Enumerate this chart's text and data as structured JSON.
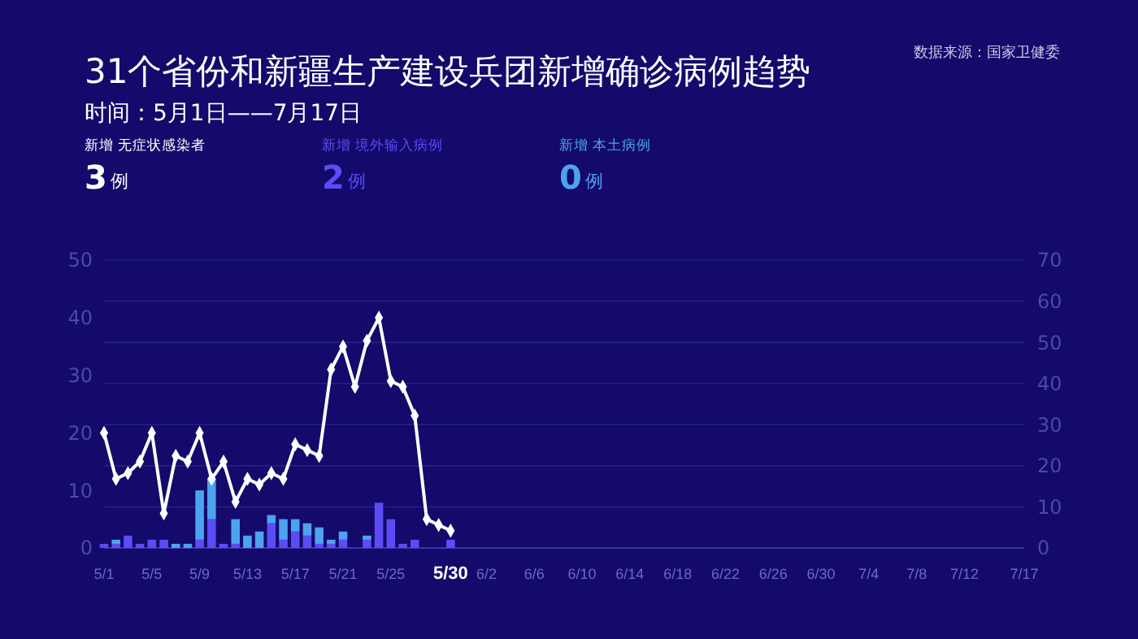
{
  "chart_data": {
    "type": "bar",
    "title": "31个省份和新疆生产建设兵团新增确诊病例趋势",
    "subtitle": "时间：5月1日——7月17日",
    "annotations": [
      "数据来源：国家卫健委",
      "例",
      "3",
      "2",
      "0"
    ],
    "x": [
      "--05-01",
      "--05-02",
      "--05-03",
      "--05-04",
      "--05-05",
      "--05-06",
      "--05-07",
      "--05-08",
      "--05-09",
      "--05-10",
      "--05-11",
      "--05-12",
      "--05-13",
      "--05-14",
      "--05-15",
      "--05-16",
      "--05-17",
      "--05-18",
      "--05-19",
      "--05-20",
      "--05-21",
      "--05-22",
      "--05-23",
      "--05-24",
      "--05-25",
      "--05-26",
      "--05-27",
      "--05-28",
      "--05-29",
      "--05-30"
    ],
    "series": [
      {
        "name": "新增 无症状感染者",
        "type": "line",
        "axis": "y",
        "color": "#ffffff",
        "values": [
          20,
          12,
          13,
          15,
          20,
          6,
          16,
          15,
          20,
          12,
          15,
          8,
          12,
          11,
          13,
          12,
          18,
          17,
          16,
          31,
          35,
          28,
          36,
          40,
          29,
          28,
          23,
          5,
          4,
          3
        ]
      },
      {
        "name": "新增 境外输入病例",
        "axis": "y2",
        "color": "#5b4cf5",
        "values": [
          1,
          1,
          3,
          1,
          2,
          2,
          0,
          0,
          2,
          7,
          1,
          1,
          0,
          0,
          6,
          2,
          4,
          3,
          1,
          1,
          2,
          0,
          2,
          11,
          7,
          1,
          2,
          0,
          0,
          2
        ]
      },
      {
        "name": "新增 本土病例",
        "axis": "y2",
        "color": "#4da3ee",
        "values": [
          0,
          1,
          0,
          0,
          0,
          0,
          1,
          1,
          12,
          10,
          0,
          6,
          3,
          4,
          2,
          5,
          3,
          3,
          4,
          1,
          2,
          0,
          1,
          0,
          0,
          0,
          0,
          0,
          0,
          0
        ]
      }
    ],
    "stacked": true,
    "marker": "diamond",
    "grid": true,
    "legend": "top left",
    "xlim": [
      "--05-01",
      "--07-17"
    ],
    "xticks": [
      {
        "value": "--05-01",
        "label": "5/1"
      },
      {
        "value": "--05-05",
        "label": "5/5"
      },
      {
        "value": "--05-09",
        "label": "5/9"
      },
      {
        "value": "--05-13",
        "label": "5/13"
      },
      {
        "value": "--05-17",
        "label": "5/17"
      },
      {
        "value": "--05-21",
        "label": "5/21"
      },
      {
        "value": "--05-25",
        "label": "5/25"
      },
      {
        "value": "--05-30",
        "label": "5/30"
      },
      {
        "value": "--06-02",
        "label": "6/2"
      },
      {
        "value": "--06-06",
        "label": "6/6"
      },
      {
        "value": "--06-10",
        "label": "6/10"
      },
      {
        "value": "--06-14",
        "label": "6/14"
      },
      {
        "value": "--06-18",
        "label": "6/18"
      },
      {
        "value": "--06-22",
        "label": "6/22"
      },
      {
        "value": "--06-26",
        "label": "6/26"
      },
      {
        "value": "--06-30",
        "label": "6/30"
      },
      {
        "value": "--07-04",
        "label": "7/4"
      },
      {
        "value": "--07-08",
        "label": "7/8"
      },
      {
        "value": "--07-12",
        "label": "7/12"
      },
      {
        "value": "--07-17",
        "label": "7/17"
      }
    ],
    "ylim": [
      0,
      50
    ],
    "yticks": [
      0,
      10,
      20,
      30,
      40,
      50
    ],
    "y2lim": [
      0,
      70
    ],
    "y2ticks": [
      0,
      10,
      20,
      30,
      40,
      50,
      60,
      70
    ]
  }
}
